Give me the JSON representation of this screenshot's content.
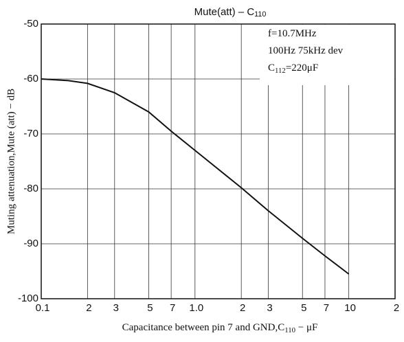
{
  "chart_data": {
    "type": "line",
    "title": [
      "Mute(att)  –  C",
      "110"
    ],
    "annotations": [
      [
        "f=10.7MHz"
      ],
      [
        "100Hz 75kHz dev"
      ],
      [
        "C",
        "112",
        "=220μF"
      ]
    ],
    "x_label": [
      "Capacitance between pin 7 and GND,C",
      "110",
      " − μF"
    ],
    "y_label": "Muting attenuation,Mute (att) − dB",
    "x": [
      0.1,
      0.15,
      0.2,
      0.3,
      0.5,
      0.7,
      1,
      2,
      3,
      5,
      7,
      10
    ],
    "series": [
      {
        "name": "Mute(att)",
        "color": "#111111",
        "values": [
          -60,
          -60.3,
          -60.8,
          -62.5,
          -66,
          -69.5,
          -73,
          -79.8,
          -84,
          -89,
          -92.2,
          -95.5
        ]
      }
    ],
    "xlim": [
      0.1,
      20
    ],
    "ylim": [
      -100,
      -50
    ],
    "xlog": true,
    "grid": true,
    "xticks": [
      {
        "value": 0.1,
        "label": "0.1"
      },
      {
        "value": 0.2,
        "label": "2"
      },
      {
        "value": 0.3,
        "label": "3"
      },
      {
        "value": 0.5,
        "label": "5"
      },
      {
        "value": 0.7,
        "label": "7"
      },
      {
        "value": 1,
        "label": "1.0"
      },
      2,
      3,
      5,
      7,
      10,
      {
        "value": 20,
        "label": "2"
      }
    ],
    "yticks": [
      -100,
      -90,
      -80,
      -70,
      -60,
      -50
    ]
  }
}
